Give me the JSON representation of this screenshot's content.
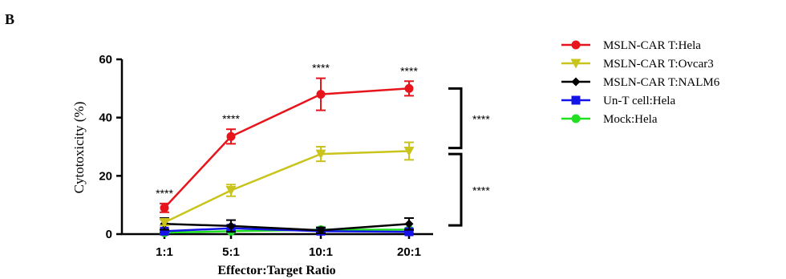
{
  "panel_label": "B",
  "chart_data": {
    "type": "line",
    "title": "",
    "xlabel": "Effector:Target Ratio",
    "ylabel": "Cytotoxicity (%)",
    "categories": [
      "1:1",
      "5:1",
      "10:1",
      "20:1"
    ],
    "ylim": [
      0,
      60
    ],
    "yticks": [
      "0",
      "20",
      "40",
      "60"
    ],
    "grid": false,
    "legend_position": "right",
    "series": [
      {
        "name": "MSLN-CAR T:Hela",
        "color": "#e8141c",
        "marker": "circle",
        "values": [
          9,
          33.5,
          48,
          50
        ],
        "errors": [
          1.5,
          2.5,
          5.5,
          2.5
        ]
      },
      {
        "name": "MSLN-CAR T:Ovcar3",
        "color": "#c8c41c",
        "marker": "triangle-down",
        "values": [
          4,
          15,
          27.5,
          28.5
        ],
        "errors": [
          1,
          2,
          2.5,
          3
        ]
      },
      {
        "name": "MSLN-CAR T:NALM6",
        "color": "#000000",
        "marker": "diamond",
        "values": [
          3.5,
          2.8,
          1.3,
          3.5
        ],
        "errors": [
          2,
          2,
          1,
          2
        ]
      },
      {
        "name": "Un-T cell:Hela",
        "color": "#1414e8",
        "marker": "square",
        "values": [
          1,
          2,
          1,
          0.8
        ],
        "errors": [
          0.5,
          1,
          0.5,
          0.5
        ]
      },
      {
        "name": "Mock:Hela",
        "color": "#20e020",
        "marker": "circle",
        "values": [
          0.5,
          1,
          1.5,
          1.5
        ],
        "errors": [
          0.3,
          0.3,
          0.3,
          0.3
        ]
      }
    ],
    "annotations": {
      "point_significance": [
        "****",
        "****",
        "****",
        "****"
      ],
      "bracket_significance": [
        "****",
        "****"
      ]
    }
  }
}
